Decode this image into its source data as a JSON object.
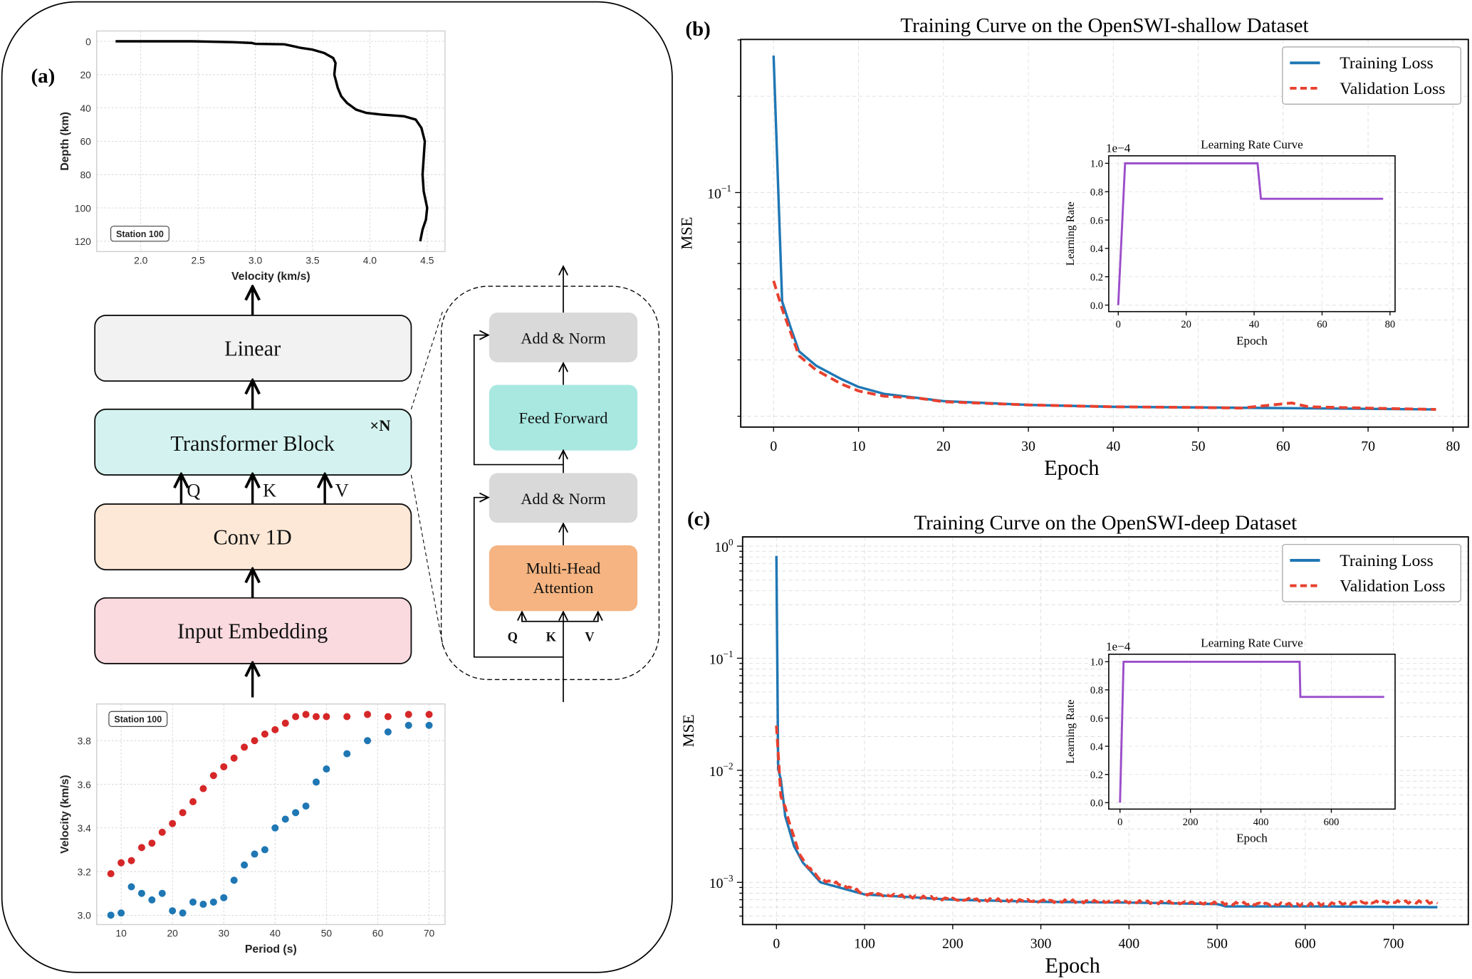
{
  "panel_labels": {
    "a": "(a)",
    "b": "(b)",
    "c": "(c)"
  },
  "diagram": {
    "linear": "Linear",
    "transformer": "Transformer Block",
    "repeat": "×N",
    "conv": "Conv 1D",
    "embedding": "Input Embedding",
    "q": "Q",
    "k": "K",
    "v": "V",
    "add_norm_top": "Add & Norm",
    "feed_forward": "Feed Forward",
    "add_norm_bottom": "Add & Norm",
    "mha_line1": "Multi-Head",
    "mha_line2": "Attention",
    "colors": {
      "linear": "#f2f2f2",
      "transformer": "#d4f3f0",
      "conv": "#fde8d7",
      "embedding": "#fadadf",
      "add_norm": "#d9d9d9",
      "feed_forward": "#a8e8e1",
      "mha": "#f5b481"
    }
  },
  "chart_data": [
    {
      "id": "depth",
      "type": "line",
      "xlabel": "Velocity (km/s)",
      "ylabel": "Depth (km)",
      "annotation": "Station 100",
      "xlim": [
        1.615,
        4.656
      ],
      "ylim": [
        126.2,
        -6.2
      ],
      "y_inverted": true,
      "grid": true,
      "xticks": [
        2.0,
        2.5,
        3.0,
        3.5,
        4.0,
        4.5
      ],
      "xtick_labels": [
        "2.0",
        "2.5",
        "3.0",
        "3.5",
        "4.0",
        "4.5"
      ],
      "yticks": [
        0,
        20,
        40,
        60,
        80,
        100,
        120
      ],
      "ytick_labels": [
        "0",
        "20",
        "40",
        "60",
        "80",
        "100",
        "120"
      ],
      "color": "#000000",
      "x": [
        1.78,
        2.45,
        2.8,
        2.97,
        3.0,
        3.25,
        3.3,
        3.4,
        3.5,
        3.6,
        3.68,
        3.7,
        3.69,
        3.72,
        3.75,
        3.8,
        3.88,
        3.97,
        4.1,
        4.3,
        4.4,
        4.45,
        4.48,
        4.47,
        4.46,
        4.47,
        4.5,
        4.49,
        4.46,
        4.44
      ],
      "y": [
        0,
        0,
        0.5,
        1,
        1.5,
        1.8,
        2.5,
        4,
        5,
        7,
        10,
        13,
        20,
        28,
        33,
        37,
        41,
        43,
        44,
        45,
        47,
        52,
        60,
        70,
        80,
        90,
        100,
        107,
        113,
        120
      ]
    },
    {
      "id": "dispersion",
      "type": "scatter",
      "xlabel": "Period (s)",
      "ylabel": "Velocity (km/s)",
      "annotation": "Station 100",
      "xlim": [
        5.24,
        73.1
      ],
      "ylim": [
        2.957,
        3.968
      ],
      "grid": true,
      "xticks": [
        10,
        20,
        30,
        40,
        50,
        60,
        70
      ],
      "xtick_labels": [
        "10",
        "20",
        "30",
        "40",
        "50",
        "60",
        "70"
      ],
      "yticks": [
        3.0,
        3.2,
        3.4,
        3.6,
        3.8
      ],
      "ytick_labels": [
        "3.0",
        "3.2",
        "3.4",
        "3.6",
        "3.8"
      ],
      "x": [
        8,
        10,
        12,
        14,
        16,
        18,
        20,
        22,
        24,
        26,
        28,
        30,
        32,
        34,
        36,
        38,
        40,
        42,
        44,
        46,
        48,
        50,
        54,
        58,
        62,
        66,
        70
      ],
      "series": [
        {
          "color": "#d62728",
          "values": [
            3.19,
            3.24,
            3.25,
            3.31,
            3.33,
            3.38,
            3.42,
            3.47,
            3.52,
            3.58,
            3.64,
            3.68,
            3.72,
            3.77,
            3.8,
            3.83,
            3.85,
            3.88,
            3.91,
            3.92,
            3.91,
            3.91,
            3.91,
            3.92,
            3.91,
            3.92,
            3.92
          ]
        },
        {
          "color": "#1f77b4",
          "values": [
            3.0,
            3.01,
            3.13,
            3.1,
            3.07,
            3.1,
            3.02,
            3.01,
            3.06,
            3.05,
            3.06,
            3.08,
            3.16,
            3.23,
            3.28,
            3.3,
            3.4,
            3.44,
            3.47,
            3.5,
            3.61,
            3.67,
            3.74,
            3.8,
            3.84,
            3.87,
            3.87
          ]
        }
      ]
    },
    {
      "id": "shallow",
      "type": "line",
      "title": "Training Curve on the OpenSWI-shallow Dataset",
      "xlabel": "Epoch",
      "ylabel": "MSE",
      "yscale": "log",
      "xlim": [
        -3.87,
        81.8
      ],
      "ylim": [
        0.0185,
        0.301
      ],
      "grid": true,
      "legend": "top-right",
      "xticks": [
        0,
        10,
        20,
        30,
        40,
        50,
        60,
        70,
        80
      ],
      "xtick_labels": [
        "0",
        "10",
        "20",
        "30",
        "40",
        "50",
        "60",
        "70",
        "80"
      ],
      "yticks": [
        0.1
      ],
      "ytick_labels": [
        "10⁻¹"
      ],
      "series": [
        {
          "name": "Training Loss",
          "color": "#1f77b4",
          "style": "solid",
          "x": [
            0,
            1,
            2,
            3,
            5,
            8,
            10,
            13,
            20,
            30,
            40,
            50,
            60,
            78
          ],
          "y": [
            0.268,
            0.0457,
            0.0379,
            0.0319,
            0.0288,
            0.0261,
            0.0247,
            0.0235,
            0.0223,
            0.0217,
            0.0214,
            0.0213,
            0.0212,
            0.021
          ]
        },
        {
          "name": "Validation Loss",
          "color": "#e8412f",
          "style": "dashed",
          "x": [
            0,
            1,
            2,
            3,
            5,
            8,
            10,
            13,
            17,
            20,
            30,
            40,
            50,
            55,
            61,
            63,
            70,
            78
          ],
          "y": [
            0.053,
            0.0433,
            0.0366,
            0.0309,
            0.0279,
            0.0252,
            0.024,
            0.0231,
            0.0228,
            0.0222,
            0.0217,
            0.0214,
            0.0213,
            0.0212,
            0.022,
            0.0214,
            0.0212,
            0.021
          ]
        }
      ],
      "inset": {
        "title": "Learning Rate Curve",
        "xlabel": "Epoch",
        "ylabel": "Learning Rate",
        "multiplier": "1e−4",
        "xlim": [
          -2.8,
          81.5
        ],
        "ylim": [
          -0.046,
          1.053
        ],
        "xticks": [
          0,
          20,
          40,
          60,
          80
        ],
        "xtick_labels": [
          "0",
          "20",
          "40",
          "60",
          "80"
        ],
        "yticks": [
          0,
          0.2,
          0.4,
          0.6,
          0.8,
          1.0
        ],
        "ytick_labels": [
          "0.0",
          "0.2",
          "0.4",
          "0.6",
          "0.8",
          "1.0"
        ],
        "color": "#9b4dca",
        "x": [
          0,
          2,
          41,
          42,
          78
        ],
        "y": [
          0,
          1.0,
          1.0,
          0.75,
          0.75
        ]
      }
    },
    {
      "id": "deep",
      "type": "line",
      "title": "Training Curve on the OpenSWI-deep Dataset",
      "xlabel": "Epoch",
      "ylabel": "MSE",
      "yscale": "log",
      "xlim": [
        -38.4,
        785
      ],
      "ylim": [
        0.00042,
        1.21
      ],
      "grid": true,
      "legend": "top-right",
      "xticks": [
        0,
        100,
        200,
        300,
        400,
        500,
        600,
        700
      ],
      "xtick_labels": [
        "0",
        "100",
        "200",
        "300",
        "400",
        "500",
        "600",
        "700"
      ],
      "yticks": [
        1,
        0.1,
        0.01,
        0.001
      ],
      "ytick_labels": [
        "10⁰",
        "10⁻¹",
        "10⁻²",
        "10⁻³"
      ],
      "series": [
        {
          "name": "Training Loss",
          "color": "#1f77b4",
          "style": "solid",
          "x": [
            0,
            2,
            5,
            10,
            20,
            30,
            50,
            100,
            200,
            300,
            400,
            500,
            510,
            600,
            750
          ],
          "y": [
            0.82,
            0.0103,
            0.0083,
            0.0039,
            0.0021,
            0.0015,
            0.001,
            0.00078,
            0.0007,
            0.00067,
            0.00066,
            0.00064,
            0.00061,
            0.00061,
            0.0006
          ]
        },
        {
          "name": "Validation Loss",
          "color": "#e8412f",
          "style": "dashed",
          "x": [
            0,
            5,
            10,
            20,
            30,
            50,
            100,
            200,
            300,
            400,
            500,
            600,
            750
          ],
          "y": [
            0.025,
            0.006,
            0.0045,
            0.0025,
            0.0016,
            0.00105,
            0.0008,
            0.00072,
            0.0007,
            0.00069,
            0.00067,
            0.00065,
            0.00065
          ]
        }
      ],
      "inset": {
        "title": "Learning Rate Curve",
        "xlabel": "Epoch",
        "ylabel": "Learning Rate",
        "multiplier": "1e−4",
        "xlim": [
          -32,
          781
        ],
        "ylim": [
          -0.046,
          1.053
        ],
        "xticks": [
          0,
          200,
          400,
          600
        ],
        "xtick_labels": [
          "0",
          "200",
          "400",
          "600"
        ],
        "yticks": [
          0,
          0.2,
          0.4,
          0.6,
          0.8,
          1.0
        ],
        "ytick_labels": [
          "0.0",
          "0.2",
          "0.4",
          "0.6",
          "0.8",
          "1.0"
        ],
        "color": "#9b4dca",
        "x": [
          0,
          10,
          510,
          512,
          750
        ],
        "y": [
          0,
          1.0,
          1.0,
          0.75,
          0.75
        ]
      }
    }
  ]
}
